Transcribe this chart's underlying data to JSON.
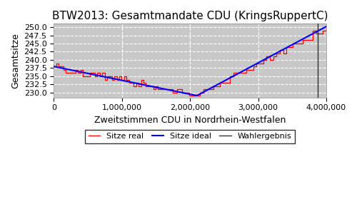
{
  "title": "BTW2013: Gesamtmandate CDU (KringsRuppertC)",
  "xlabel": "Zweitstimmen CDU in Nordrhein-Westfalen",
  "ylabel": "Gesamtsitze",
  "xlim": [
    0,
    4000000
  ],
  "ylim": [
    228.5,
    251.2
  ],
  "yticks": [
    230.0,
    232.5,
    235.0,
    237.5,
    240.0,
    242.5,
    245.0,
    247.5,
    250.0
  ],
  "xticks": [
    0,
    1000000,
    2000000,
    3000000,
    4000000
  ],
  "wahlergebnis_x": 3870000,
  "ideal_start_y": 238.0,
  "ideal_min_y": 229.1,
  "ideal_min_x": 2100000,
  "ideal_end_y": 250.2,
  "background_color": "#c8c8c8",
  "line_real_color": "#ff0000",
  "line_ideal_color": "#0000ff",
  "wahlergebnis_color": "#303030",
  "legend_labels": [
    "Sitze real",
    "Sitze ideal",
    "Wahlergebnis"
  ],
  "title_fontsize": 11,
  "axis_label_fontsize": 9,
  "tick_fontsize": 8
}
